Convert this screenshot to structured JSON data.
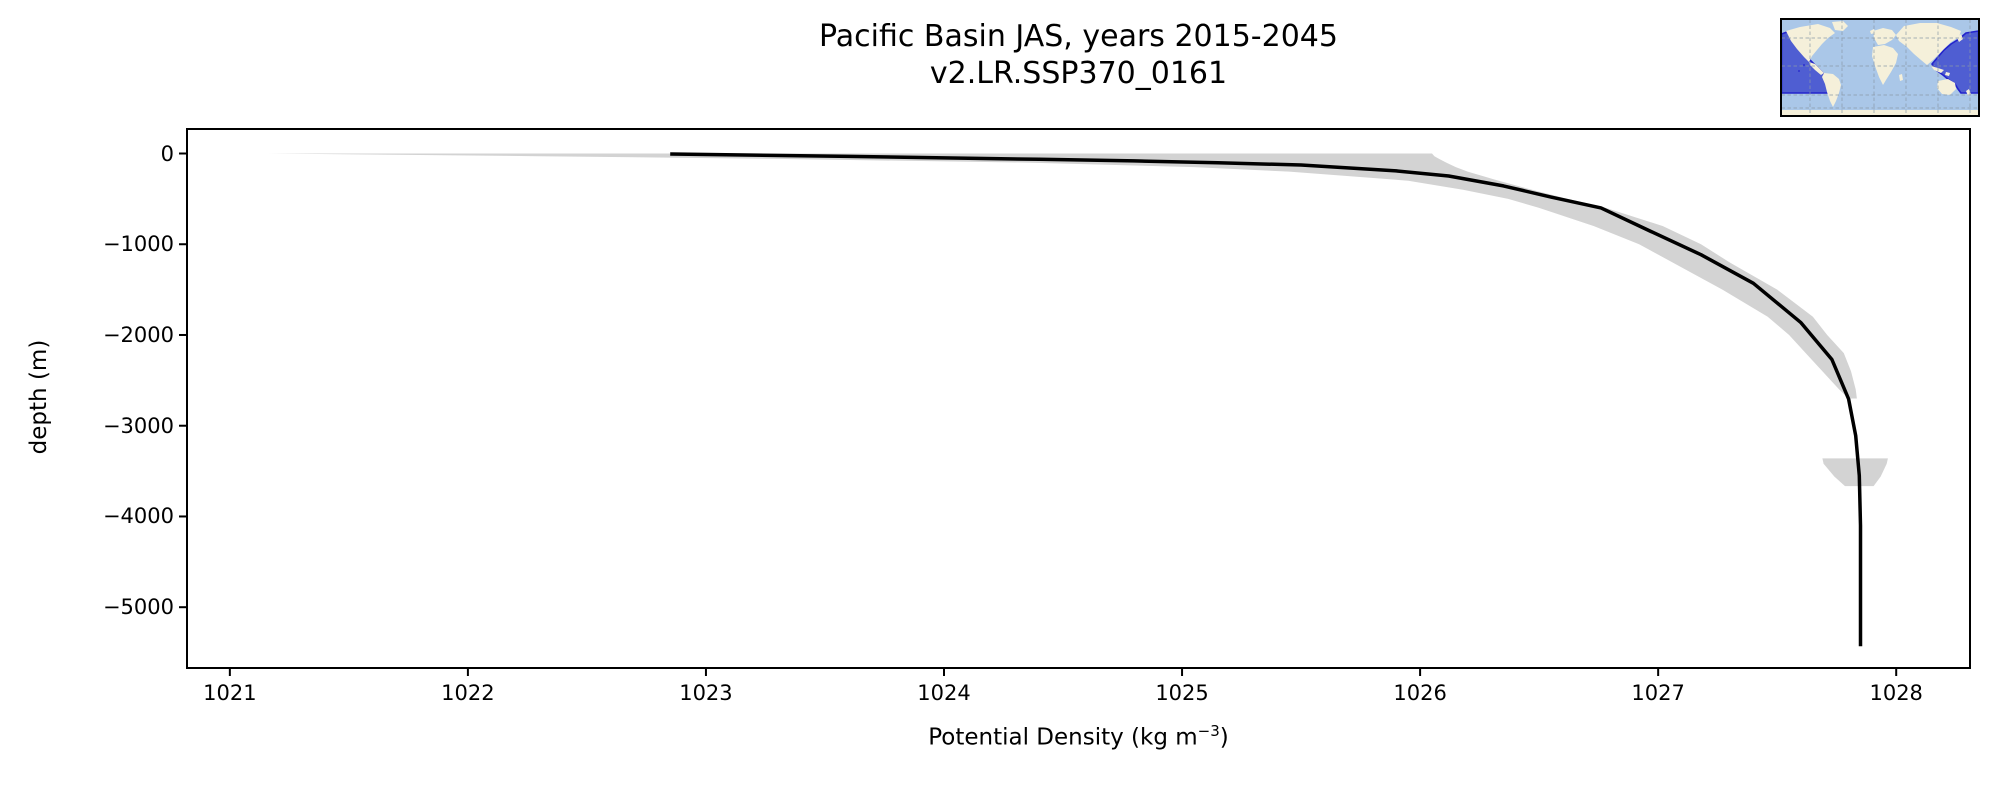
{
  "figure": {
    "title_line1": "Pacific Basin JAS, years 2015-2045",
    "title_line2": "v2.LR.SSP370_0161"
  },
  "axes": {
    "xlabel_prefix": "Potential Density (kg m",
    "xlabel_superscript": "−3",
    "xlabel_suffix": ")",
    "ylabel": "depth (m)"
  },
  "chart_data": {
    "type": "line",
    "title": "Pacific Basin JAS, years 2015-2045",
    "subtitle": "v2.LR.SSP370_0161",
    "xlabel": "Potential Density (kg m^-3)",
    "ylabel": "depth (m)",
    "grid": false,
    "legend": null,
    "x_axis": {
      "lim": [
        1020.82,
        1028.31
      ],
      "ticks": [
        1021,
        1022,
        1023,
        1024,
        1025,
        1026,
        1027,
        1028
      ],
      "tick_labels": [
        "1021",
        "1022",
        "1023",
        "1024",
        "1025",
        "1026",
        "1027",
        "1028"
      ]
    },
    "y_axis": {
      "lim": [
        270,
        -5670
      ],
      "ticks": [
        0,
        -1000,
        -2000,
        -3000,
        -4000,
        -5000
      ],
      "tick_labels": [
        "0",
        "−1000",
        "−2000",
        "−3000",
        "−4000",
        "−5000"
      ]
    },
    "series": [
      {
        "name": "mean_potential_density_profile",
        "color": "#000000",
        "line_width": 3.5,
        "points": [
          [
            1022.85,
            -5
          ],
          [
            1023.2,
            -18
          ],
          [
            1023.6,
            -32
          ],
          [
            1024.0,
            -48
          ],
          [
            1024.4,
            -64
          ],
          [
            1024.8,
            -82
          ],
          [
            1025.15,
            -103
          ],
          [
            1025.5,
            -127
          ],
          [
            1025.9,
            -192
          ],
          [
            1026.12,
            -248
          ],
          [
            1026.35,
            -357
          ],
          [
            1026.55,
            -480
          ],
          [
            1026.76,
            -600
          ],
          [
            1026.97,
            -860
          ],
          [
            1027.18,
            -1115
          ],
          [
            1027.4,
            -1430
          ],
          [
            1027.6,
            -1865
          ],
          [
            1027.73,
            -2270
          ],
          [
            1027.8,
            -2705
          ],
          [
            1027.83,
            -3110
          ],
          [
            1027.845,
            -3550
          ],
          [
            1027.85,
            -4100
          ],
          [
            1027.85,
            -5430
          ]
        ]
      }
    ],
    "bands": [
      {
        "name": "density_spread_upper_ocean",
        "color": "#d3d3d3",
        "rows": [
          [
            0,
            1021.16,
            1026.05
          ],
          [
            -30,
            1022.3,
            1026.06
          ],
          [
            -60,
            1023.3,
            1026.08
          ],
          [
            -100,
            1024.35,
            1026.11
          ],
          [
            -150,
            1025.05,
            1026.15
          ],
          [
            -200,
            1025.45,
            1026.2
          ],
          [
            -300,
            1025.95,
            1026.33
          ],
          [
            -400,
            1026.18,
            1026.47
          ],
          [
            -500,
            1026.37,
            1026.62
          ],
          [
            -600,
            1026.5,
            1026.78
          ],
          [
            -800,
            1026.73,
            1027.02
          ],
          [
            -1000,
            1026.92,
            1027.18
          ],
          [
            -1200,
            1027.06,
            1027.3
          ],
          [
            -1500,
            1027.27,
            1027.5
          ],
          [
            -1800,
            1027.46,
            1027.65
          ],
          [
            -2000,
            1027.55,
            1027.71
          ],
          [
            -2200,
            1027.62,
            1027.78
          ],
          [
            -2400,
            1027.69,
            1027.81
          ],
          [
            -2600,
            1027.76,
            1027.83
          ],
          [
            -2700,
            1027.8,
            1027.835
          ]
        ]
      },
      {
        "name": "density_spread_deep_patch",
        "color": "#d3d3d3",
        "rows": [
          [
            -3360,
            1027.69,
            1027.965
          ],
          [
            -3420,
            1027.695,
            1027.96
          ],
          [
            -3560,
            1027.74,
            1027.935
          ],
          [
            -3665,
            1027.785,
            1027.905
          ]
        ]
      }
    ]
  },
  "inset_map": {
    "description": "world map thumbnail with Pacific basin region highlighted",
    "colors": {
      "ocean": "#aac7e8",
      "land": "#f5f0da",
      "highlight": "#4f5ed2",
      "highlight_edge": "#2323cb",
      "grid": "#8a99a8",
      "border": "#000000"
    }
  }
}
